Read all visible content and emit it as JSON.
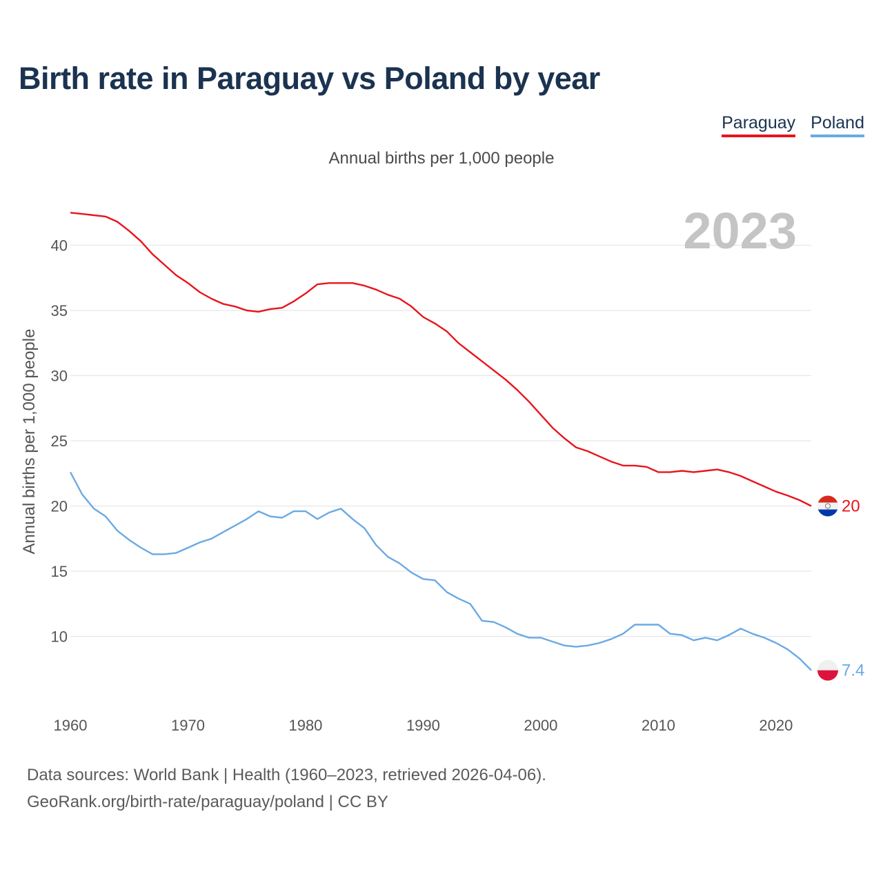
{
  "chart_data": {
    "type": "line",
    "title": "Birth rate in Paraguay vs Poland by year",
    "subtitle": "Annual births per 1,000 people",
    "ylabel": "Annual births per 1,000 people",
    "xlabel": "",
    "year_label": "2023",
    "xlim": [
      1960,
      2024
    ],
    "ylim": [
      5,
      44
    ],
    "x_ticks": [
      1960,
      1970,
      1980,
      1990,
      2000,
      2010,
      2020
    ],
    "y_ticks": [
      10,
      15,
      20,
      25,
      30,
      35,
      40
    ],
    "legend_position": "top-right",
    "x": [
      1960,
      1961,
      1962,
      1963,
      1964,
      1965,
      1966,
      1967,
      1968,
      1969,
      1970,
      1971,
      1972,
      1973,
      1974,
      1975,
      1976,
      1977,
      1978,
      1979,
      1980,
      1981,
      1982,
      1983,
      1984,
      1985,
      1986,
      1987,
      1988,
      1989,
      1990,
      1991,
      1992,
      1993,
      1994,
      1995,
      1996,
      1997,
      1998,
      1999,
      2000,
      2001,
      2002,
      2003,
      2004,
      2005,
      2006,
      2007,
      2008,
      2009,
      2010,
      2011,
      2012,
      2013,
      2014,
      2015,
      2016,
      2017,
      2018,
      2019,
      2020,
      2021,
      2022,
      2023
    ],
    "series": [
      {
        "name": "Paraguay",
        "color": "#e8141c",
        "end_label": "20",
        "values": [
          42.5,
          42.4,
          42.3,
          42.2,
          41.8,
          41.1,
          40.3,
          39.3,
          38.5,
          37.7,
          37.1,
          36.4,
          35.9,
          35.5,
          35.3,
          35.0,
          34.9,
          35.1,
          35.2,
          35.7,
          36.3,
          37.0,
          37.1,
          37.1,
          37.1,
          36.9,
          36.6,
          36.2,
          35.9,
          35.3,
          34.5,
          34.0,
          33.4,
          32.5,
          31.8,
          31.1,
          30.4,
          29.7,
          28.9,
          28.0,
          27.0,
          26.0,
          25.2,
          24.5,
          24.2,
          23.8,
          23.4,
          23.1,
          23.1,
          23.0,
          22.6,
          22.6,
          22.7,
          22.6,
          22.7,
          22.8,
          22.6,
          22.3,
          21.9,
          21.5,
          21.1,
          20.8,
          20.45,
          20.0
        ]
      },
      {
        "name": "Poland",
        "color": "#6aa9e4",
        "end_label": "7.4",
        "values": [
          22.6,
          20.9,
          19.8,
          19.2,
          18.1,
          17.4,
          16.8,
          16.3,
          16.3,
          16.4,
          16.8,
          17.2,
          17.5,
          18.0,
          18.5,
          19.0,
          19.6,
          19.2,
          19.1,
          19.6,
          19.6,
          19.0,
          19.5,
          19.8,
          19.0,
          18.3,
          17.0,
          16.1,
          15.6,
          14.9,
          14.4,
          14.3,
          13.4,
          12.9,
          12.5,
          11.2,
          11.1,
          10.7,
          10.2,
          9.9,
          9.9,
          9.6,
          9.3,
          9.2,
          9.3,
          9.5,
          9.8,
          10.2,
          10.9,
          10.9,
          10.9,
          10.2,
          10.1,
          9.7,
          9.9,
          9.7,
          10.1,
          10.6,
          10.2,
          9.9,
          9.5,
          9.0,
          8.3,
          7.4
        ]
      }
    ]
  },
  "footer": {
    "line1": "Data sources: World Bank | Health (1960–2023, retrieved 2026-04-06).",
    "line2": "GeoRank.org/birth-rate/paraguay/poland | CC BY"
  }
}
